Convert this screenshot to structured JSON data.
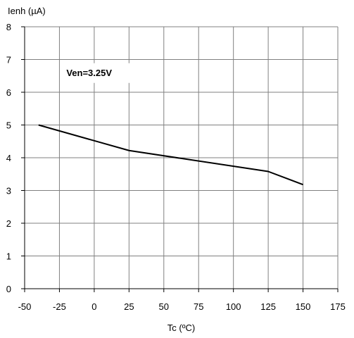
{
  "chart_data": {
    "type": "line",
    "title": "",
    "xlabel": "Tc (ºC)",
    "ylabel": "Ienh (µA)",
    "xlim": [
      -50,
      175
    ],
    "ylim": [
      0,
      8
    ],
    "x_ticks": [
      -50,
      -25,
      0,
      25,
      50,
      75,
      100,
      125,
      150,
      175
    ],
    "y_ticks": [
      0,
      1,
      2,
      3,
      4,
      5,
      6,
      7,
      8
    ],
    "grid": true,
    "legend": "none",
    "annotations": [
      {
        "text": "Ven=3.25V",
        "x": -20,
        "y": 6.5
      }
    ],
    "series": [
      {
        "x": [
          -40,
          25,
          125,
          150
        ],
        "y": [
          5.0,
          4.22,
          3.58,
          3.18
        ]
      }
    ]
  },
  "colors": {
    "line": "#000000",
    "grid": "#808080",
    "axis": "#000000",
    "background": "#ffffff"
  }
}
